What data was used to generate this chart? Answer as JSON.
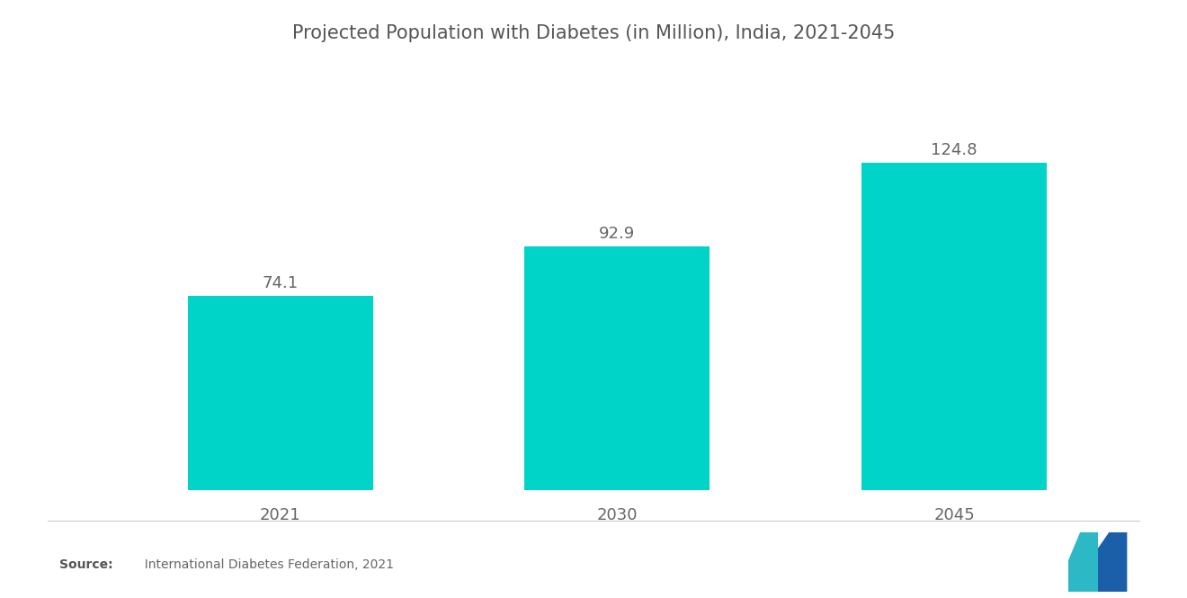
{
  "title": "Projected Population with Diabetes (in Million), India, 2021-2045",
  "categories": [
    "2021",
    "2030",
    "2045"
  ],
  "values": [
    74.1,
    92.9,
    124.8
  ],
  "bar_color": "#00D4C8",
  "background_color": "#ffffff",
  "title_fontsize": 15,
  "ylim": [
    0,
    148
  ],
  "bar_width": 0.55,
  "xlabel_fontsize": 13,
  "value_label_fontsize": 13,
  "source_bold": "Source:",
  "source_normal": "  International Diabetes Federation, 2021"
}
